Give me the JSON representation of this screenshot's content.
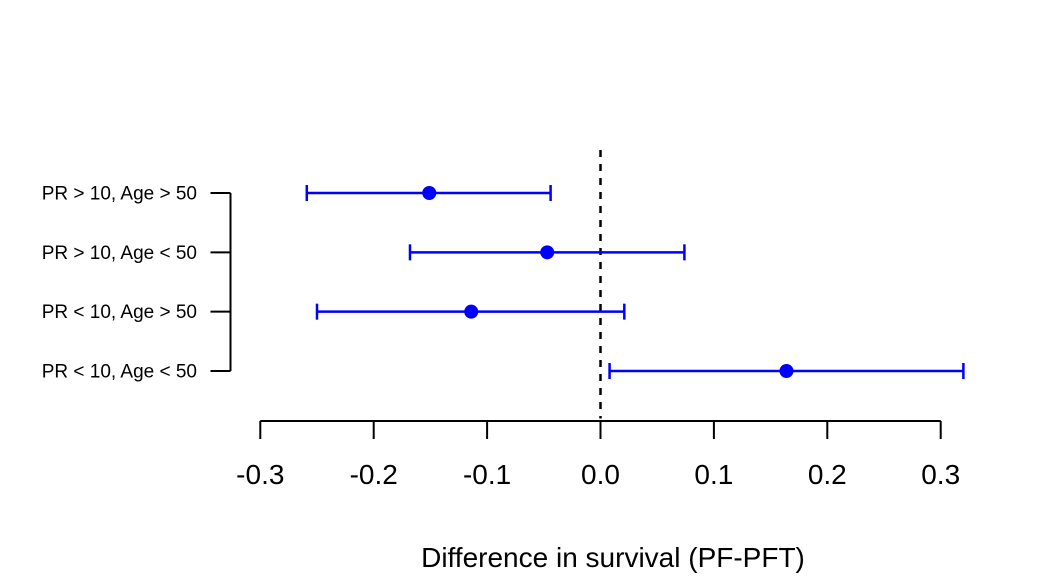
{
  "figure": {
    "background": "#ffffff",
    "axis_color": "#000000",
    "accent_color": "#0000ff"
  },
  "chart_data": {
    "type": "scatter",
    "subtype": "forest-plot-horizontal-ci",
    "title": "",
    "xlabel": "Difference in survival (PF-PFT)",
    "ylabel": "",
    "xlim": [
      -0.3,
      0.3
    ],
    "x_ticks": [
      -0.3,
      -0.2,
      -0.1,
      0.0,
      0.1,
      0.2,
      0.3
    ],
    "x_tick_labels": [
      "-0.3",
      "-0.2",
      "-0.1",
      "0.0",
      "0.1",
      "0.2",
      "0.3"
    ],
    "categories": [
      "PR > 10, Age > 50",
      "PR > 10, Age < 50",
      "PR < 10, Age > 50",
      "PR < 10, Age < 50"
    ],
    "series": [
      {
        "name": "difference-in-survival",
        "marker": {
          "shape": "filled-circle",
          "color": "#0000ff"
        },
        "points": [
          {
            "category": "PR > 10, Age > 50",
            "estimate": -0.151,
            "ci_lower": -0.259,
            "ci_upper": -0.044
          },
          {
            "category": "PR > 10, Age < 50",
            "estimate": -0.047,
            "ci_lower": -0.168,
            "ci_upper": 0.074
          },
          {
            "category": "PR < 10, Age > 50",
            "estimate": -0.114,
            "ci_lower": -0.25,
            "ci_upper": 0.021
          },
          {
            "category": "PR < 10, Age < 50",
            "estimate": 0.164,
            "ci_lower": 0.008,
            "ci_upper": 0.32
          }
        ]
      }
    ],
    "reference_line": {
      "x": 0.0,
      "style": "dashed",
      "color": "#000000"
    },
    "grid": false,
    "legend_position": "none"
  }
}
